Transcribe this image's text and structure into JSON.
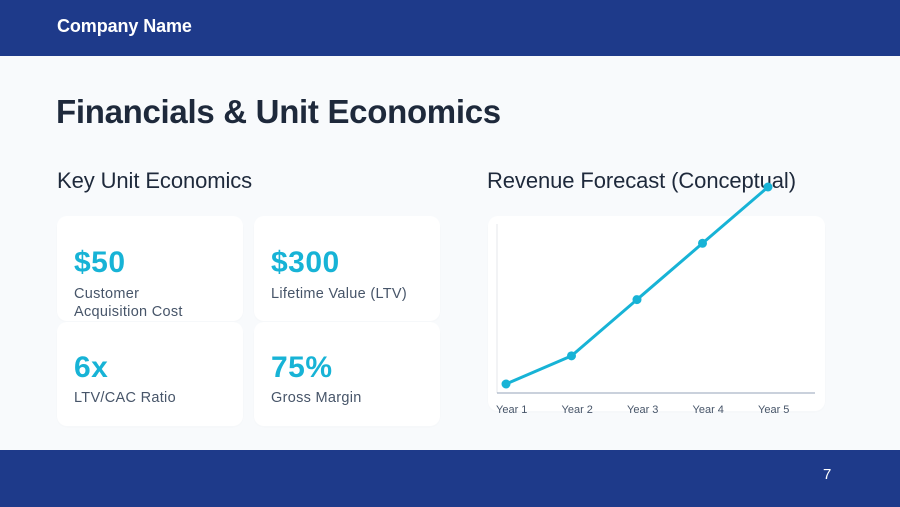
{
  "header": {
    "company_name": "Company Name"
  },
  "slide": {
    "title": "Financials & Unit Economics",
    "page_number": "7"
  },
  "unit_economics": {
    "heading": "Key Unit Economics",
    "metrics": [
      {
        "value": "$50",
        "label": "Customer Acquisition Cost"
      },
      {
        "value": "$300",
        "label": "Lifetime Value (LTV)"
      },
      {
        "value": "6x",
        "label": "LTV/CAC Ratio"
      },
      {
        "value": "75%",
        "label": "Gross Margin"
      }
    ]
  },
  "revenue_forecast": {
    "heading": "Revenue Forecast (Conceptual)"
  },
  "colors": {
    "brand_blue": "#1e3a8a",
    "accent_cyan": "#17b3d6",
    "text_dark": "#1e293b",
    "text_muted": "#475569",
    "background": "#f8fafc"
  },
  "chart_data": {
    "type": "line",
    "title": "Revenue Forecast (Conceptual)",
    "categories": [
      "Year 1",
      "Year 2",
      "Year 3",
      "Year 4",
      "Year 5"
    ],
    "series": [
      {
        "name": "Revenue",
        "values": [
          1,
          6,
          16,
          26,
          36
        ]
      }
    ],
    "xlabel": "",
    "ylabel": "",
    "y_axis_labels_shown": false,
    "grid": false,
    "legend": "none",
    "note": "Conceptual chart with no y-axis values; values are relative estimates from point heights"
  }
}
